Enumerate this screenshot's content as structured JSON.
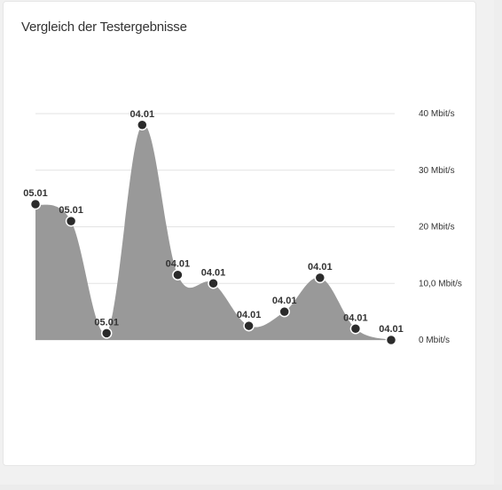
{
  "card": {
    "title": "Vergleich der Testergebnisse"
  },
  "chart_data": {
    "type": "area",
    "title": "Vergleich der Testergebnisse",
    "xlabel": "",
    "ylabel": "",
    "ylim": [
      0,
      40
    ],
    "y_ticks": [
      {
        "value": 40,
        "label": "40 Mbit/s"
      },
      {
        "value": 30,
        "label": "30 Mbit/s"
      },
      {
        "value": 20,
        "label": "20 Mbit/s"
      },
      {
        "value": 10,
        "label": "10,0 Mbit/s"
      },
      {
        "value": 0,
        "label": "0 Mbit/s"
      }
    ],
    "y_axis_side": "right",
    "grid": true,
    "colors": {
      "fill": "#999999",
      "point": "#2b2b2b",
      "point_stroke": "#ffffff",
      "grid": "#e3e3e3"
    },
    "points": [
      {
        "label": "05.01",
        "value": 24
      },
      {
        "label": "05.01",
        "value": 21
      },
      {
        "label": "05.01",
        "value": 1.2
      },
      {
        "label": "04.01",
        "value": 38
      },
      {
        "label": "04.01",
        "value": 11.5
      },
      {
        "label": "04.01",
        "value": 10
      },
      {
        "label": "04.01",
        "value": 2.5
      },
      {
        "label": "04.01",
        "value": 5
      },
      {
        "label": "04.01",
        "value": 11
      },
      {
        "label": "04.01",
        "value": 2
      },
      {
        "label": "04.01",
        "value": 0
      }
    ]
  }
}
